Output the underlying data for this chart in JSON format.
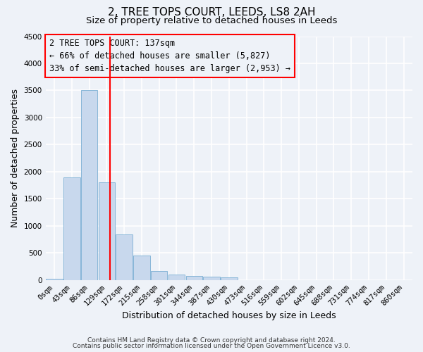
{
  "title": "2, TREE TOPS COURT, LEEDS, LS8 2AH",
  "subtitle": "Size of property relative to detached houses in Leeds",
  "xlabel": "Distribution of detached houses by size in Leeds",
  "ylabel": "Number of detached properties",
  "footnote1": "Contains HM Land Registry data © Crown copyright and database right 2024.",
  "footnote2": "Contains public sector information licensed under the Open Government Licence v3.0.",
  "categories": [
    "0sqm",
    "43sqm",
    "86sqm",
    "129sqm",
    "172sqm",
    "215sqm",
    "258sqm",
    "301sqm",
    "344sqm",
    "387sqm",
    "430sqm",
    "473sqm",
    "516sqm",
    "559sqm",
    "602sqm",
    "645sqm",
    "688sqm",
    "731sqm",
    "774sqm",
    "817sqm",
    "860sqm"
  ],
  "values": [
    30,
    1900,
    3500,
    1800,
    850,
    450,
    175,
    100,
    75,
    60,
    50,
    0,
    0,
    0,
    0,
    0,
    0,
    0,
    0,
    0,
    0
  ],
  "bar_color": "#c8d8ed",
  "bar_edge_color": "#7bafd4",
  "ylim": [
    0,
    4500
  ],
  "yticks": [
    0,
    500,
    1000,
    1500,
    2000,
    2500,
    3000,
    3500,
    4000,
    4500
  ],
  "annotation_text1": "2 TREE TOPS COURT: 137sqm",
  "annotation_text2": "← 66% of detached houses are smaller (5,827)",
  "annotation_text3": "33% of semi-detached houses are larger (2,953) →",
  "background_color": "#eef2f8",
  "grid_color": "#ffffff",
  "title_fontsize": 11,
  "subtitle_fontsize": 9.5,
  "label_fontsize": 9,
  "tick_fontsize": 7.5,
  "annotation_fontsize": 8.5
}
